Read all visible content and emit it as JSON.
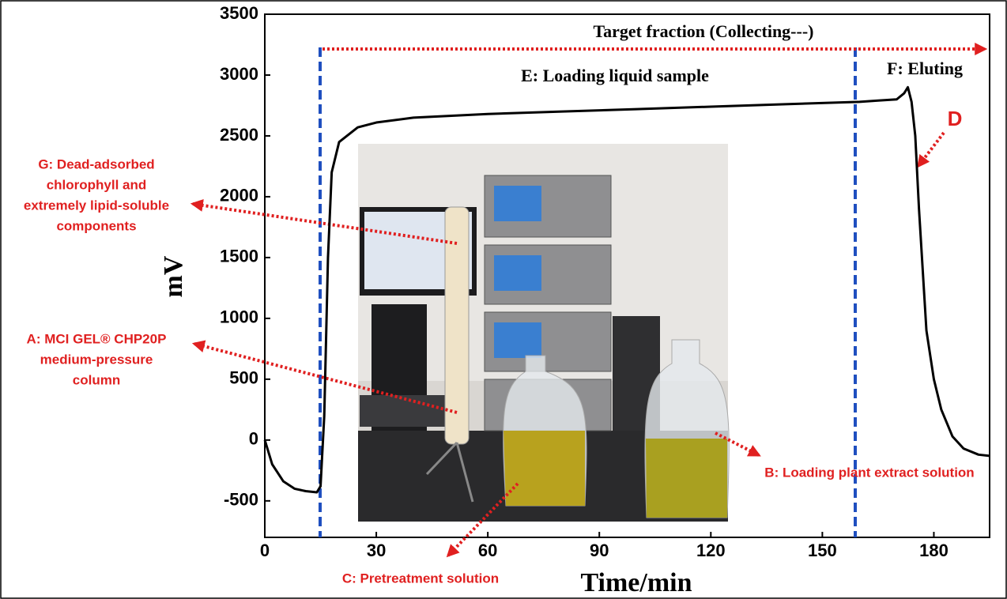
{
  "chart_data": {
    "type": "line",
    "x_label": "Time/min",
    "y_label": "mV",
    "x": [
      0,
      2,
      5,
      8,
      11,
      14,
      15,
      16,
      17,
      18,
      20,
      25,
      30,
      40,
      60,
      80,
      100,
      120,
      140,
      160,
      165,
      170,
      172,
      173,
      174,
      175,
      176,
      178,
      180,
      182,
      185,
      188,
      192,
      195
    ],
    "values": [
      0,
      -200,
      -340,
      -400,
      -420,
      -430,
      -380,
      200,
      1500,
      2200,
      2450,
      2570,
      2610,
      2650,
      2680,
      2700,
      2720,
      2740,
      2760,
      2780,
      2790,
      2800,
      2850,
      2900,
      2780,
      2500,
      1900,
      900,
      500,
      250,
      30,
      -70,
      -120,
      -130
    ],
    "color": "#000000",
    "xlim": [
      0,
      195
    ],
    "ylim": [
      -800,
      3500
    ],
    "xticks": [
      0,
      30,
      60,
      90,
      120,
      150,
      180
    ],
    "yticks": [
      -500,
      0,
      500,
      1000,
      1500,
      2000,
      2500,
      3000,
      3500
    ],
    "annotations": {
      "target": "Target fraction (Collecting---)",
      "loading": "E: Loading liquid sample",
      "eluting": "F: Eluting",
      "d": "D",
      "g": [
        "G: Dead-adsorbed",
        "chlorophyll and",
        "extremely lipid-soluble",
        "components"
      ],
      "a": [
        "A: MCI GEL® CHP20P",
        "medium-pressure",
        "column"
      ],
      "c": "C: Pretreatment solution",
      "b": "B: Loading plant extract solution"
    }
  }
}
